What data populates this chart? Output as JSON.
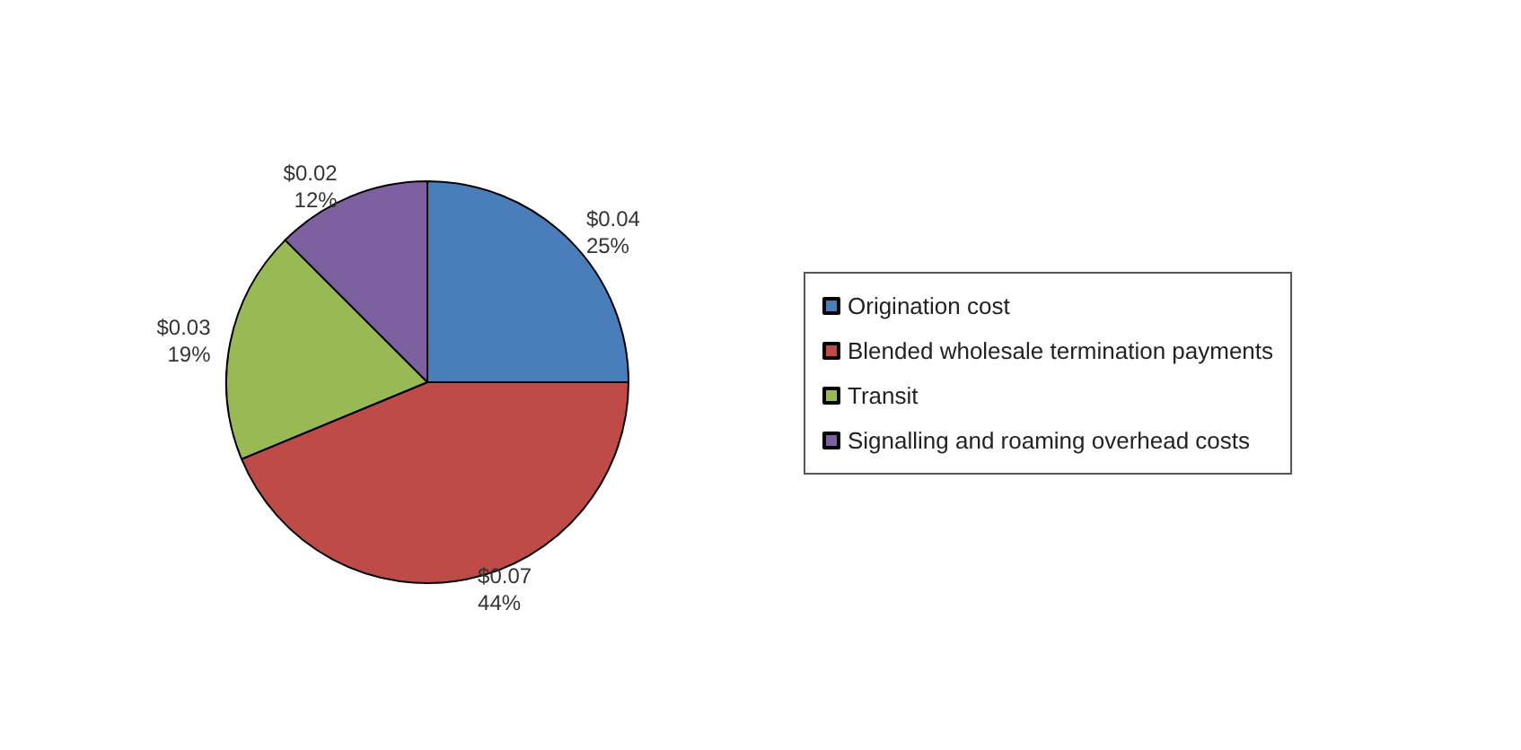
{
  "chart_data": {
    "type": "pie",
    "categories": [
      "Origination cost",
      "Blended wholesale termination payments",
      "Transit",
      "Signalling and roaming overhead costs"
    ],
    "values": [
      0.04,
      0.07,
      0.03,
      0.02
    ],
    "colors": [
      "#4a7ebb",
      "#be4b48",
      "#98b954",
      "#7d60a0"
    ],
    "value_labels": [
      "$0.04\n25%",
      "$0.07\n44%",
      "$0.03\n19%",
      "$0.02\n12%"
    ],
    "legend": "right"
  }
}
